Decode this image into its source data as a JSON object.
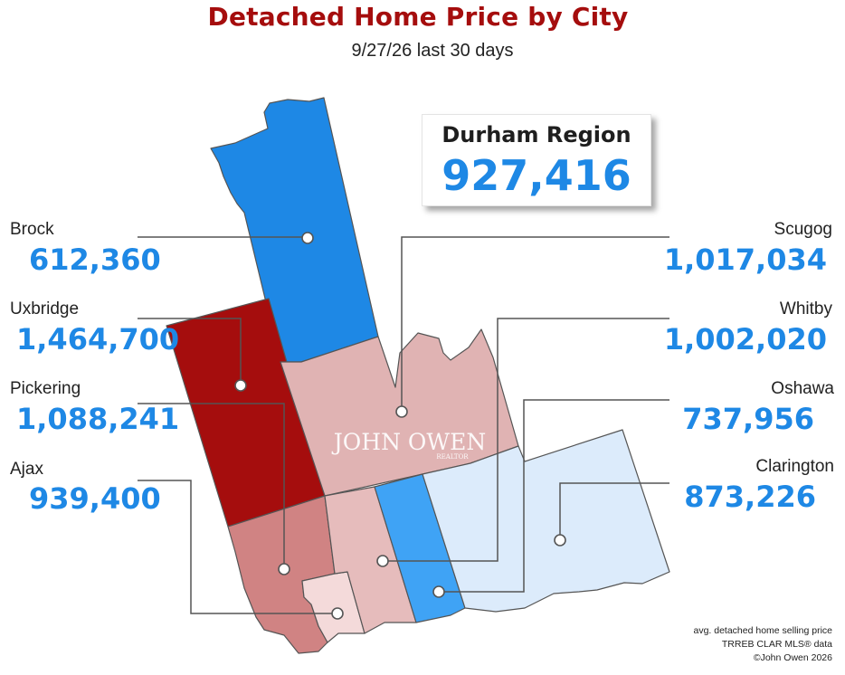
{
  "title": "Detached Home Price by City",
  "subtitle": "9/27/26  last 30 days",
  "region": {
    "name": "Durham Region",
    "value": "927,416"
  },
  "cities": {
    "brock": {
      "name": "Brock",
      "value": "612,360",
      "fill": "#1e88e5"
    },
    "uxbridge": {
      "name": "Uxbridge",
      "value": "1,464,700",
      "fill": "#a50d0d"
    },
    "pickering": {
      "name": "Pickering",
      "value": "1,088,241",
      "fill": "#d08383"
    },
    "ajax": {
      "name": "Ajax",
      "value": "939,400",
      "fill": "#f4dada"
    },
    "scugog": {
      "name": "Scugog",
      "value": "1,017,034",
      "fill": "#e0b3b3"
    },
    "whitby": {
      "name": "Whitby",
      "value": "1,002,020",
      "fill": "#e6bcbc"
    },
    "oshawa": {
      "name": "Oshawa",
      "value": "737,956",
      "fill": "#3fa3f5"
    },
    "clarington": {
      "name": "Clarington",
      "value": "873,226",
      "fill": "#dcebfb"
    }
  },
  "watermark": {
    "name": "JOHN OWEN",
    "tag": "REALTOR"
  },
  "footnote": {
    "line1": "avg. detached home selling price",
    "line2": "TRREB CLAR MLS® data",
    "line3": "©John Owen 2026"
  },
  "colors": {
    "title": "#a50d0d",
    "value": "#1e88e5",
    "border": "#555555"
  }
}
